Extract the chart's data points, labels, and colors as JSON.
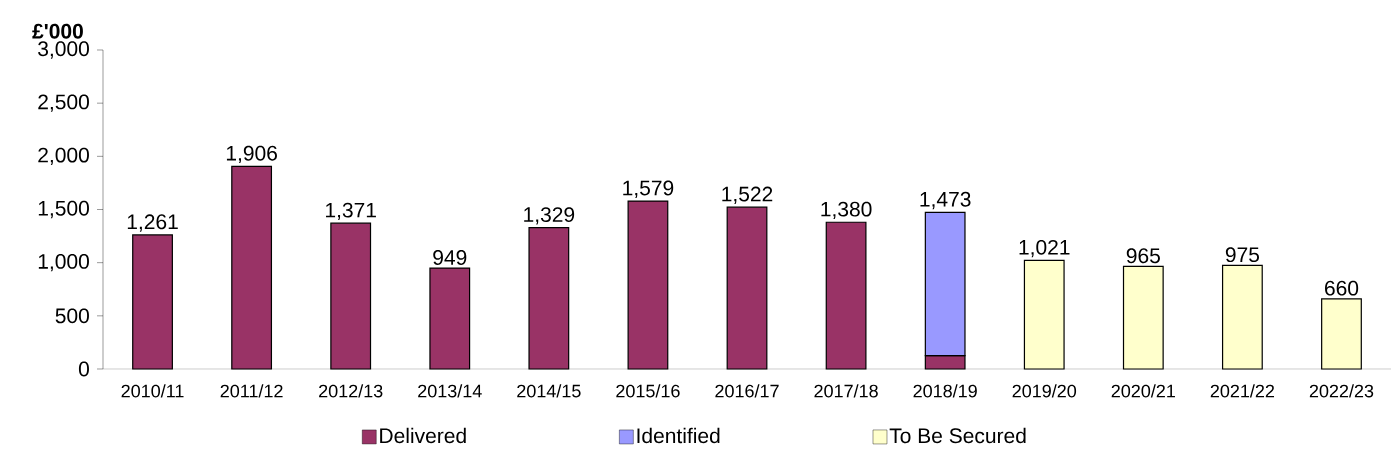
{
  "chart_data": {
    "type": "bar",
    "stacked": true,
    "ylabel": "£'000",
    "categories": [
      "2010/11",
      "2011/12",
      "2012/13",
      "2013/14",
      "2014/15",
      "2015/16",
      "2016/17",
      "2017/18",
      "2018/19",
      "2019/20",
      "2020/21",
      "2021/22",
      "2022/23"
    ],
    "series": [
      {
        "name": "Delivered",
        "color": "#993366",
        "values": [
          1261,
          1906,
          1371,
          949,
          1329,
          1579,
          1522,
          1380,
          125,
          null,
          null,
          null,
          null
        ]
      },
      {
        "name": "Identified",
        "color": "#9999ff",
        "values": [
          null,
          null,
          null,
          null,
          null,
          null,
          null,
          null,
          1348,
          null,
          null,
          null,
          null
        ]
      },
      {
        "name": "To Be Secured",
        "color": "#ffffcc",
        "values": [
          null,
          null,
          null,
          null,
          null,
          null,
          null,
          null,
          null,
          1021,
          965,
          975,
          660
        ]
      }
    ],
    "totals": [
      "1,261",
      "1,906",
      "1,371",
      "949",
      "1,329",
      "1,579",
      "1,522",
      "1,380",
      "1,473",
      "1,021",
      "965",
      "975",
      "660"
    ],
    "ylim": [
      0,
      3000
    ],
    "yticks": [
      {
        "value": 0,
        "label": "0"
      },
      {
        "value": 500,
        "label": "500"
      },
      {
        "value": 1000,
        "label": "1,000"
      },
      {
        "value": 1500,
        "label": "1,500"
      },
      {
        "value": 2000,
        "label": "2,000"
      },
      {
        "value": 2500,
        "label": "2,500"
      },
      {
        "value": 3000,
        "label": "3,000"
      }
    ],
    "legend": "bottom"
  }
}
